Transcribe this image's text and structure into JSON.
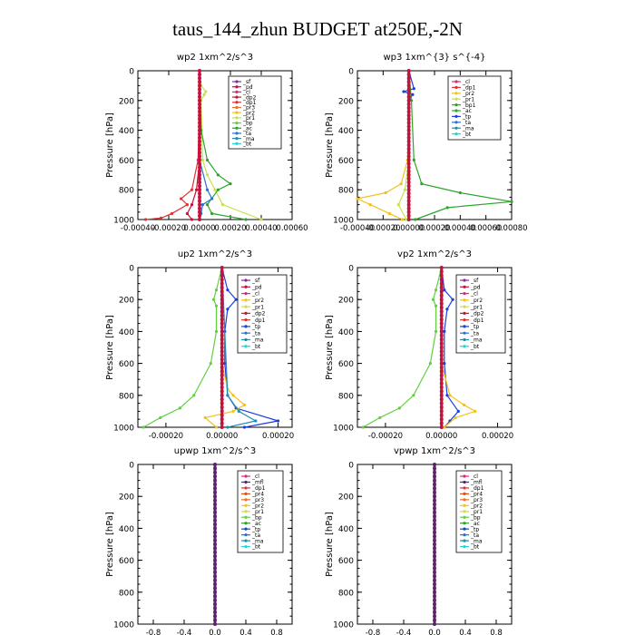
{
  "page_title": "taus_144_zhun  BUDGET at250E,-2N",
  "colors": {
    "sf": "#7e2fa0",
    "pd": "#c8103c",
    "cl": "#d42a7a",
    "dp2": "#c01830",
    "dp1": "#e03030",
    "pr4": "#e05010",
    "pr3": "#f07020",
    "pr2": "#f2c21a",
    "pr1": "#c8e050",
    "bp": "#60d040",
    "ac": "#2aa52a",
    "tp": "#1a3fe0",
    "ta": "#2f6fd0",
    "ma": "#1b8fb0",
    "bt": "#1ad8d8",
    "mfl": "#602070"
  },
  "chart_data": [
    {
      "type": "line",
      "title": "wp2   1xm^2/s^3",
      "ylabel": "Pressure [hPa]",
      "xlim": [
        -0.0004,
        0.0006
      ],
      "ylim": [
        1000,
        0
      ],
      "xticks": [
        -0.0004,
        -0.0002,
        0.0,
        0.0002,
        0.0004,
        0.0006
      ],
      "xtick_labels": [
        "-0.00040",
        "-0.00020",
        "0.00000",
        "0.00020",
        "0.00040",
        "0.00060"
      ],
      "yticks": [
        0,
        200,
        400,
        600,
        800,
        1000
      ],
      "ytick_labels": [
        "0",
        "200",
        "400",
        "600",
        "800",
        "1000"
      ],
      "legend_position": "top-right",
      "legend": [
        "_sf",
        "_pd",
        "_cl",
        "_dp2",
        "_dp1",
        "_pr3",
        "_pr2",
        "_pr1",
        "_bp",
        "_ac",
        "_ta",
        "_ma",
        "_bt"
      ],
      "series": [
        {
          "name": "_sf",
          "color_key": "sf",
          "p": [
            0,
            200,
            400,
            600,
            800,
            1000
          ],
          "x": [
            0,
            0,
            0,
            0,
            0,
            0
          ]
        },
        {
          "name": "_pd",
          "color_key": "pd",
          "p": [
            0,
            200,
            400,
            600,
            800,
            900,
            960,
            1000
          ],
          "x": [
            0,
            0,
            0,
            0,
            -2e-05,
            -5e-05,
            -8e-05,
            -5e-05
          ]
        },
        {
          "name": "_pr1",
          "color_key": "pr1",
          "p": [
            0,
            100,
            140,
            160,
            200,
            600,
            700,
            800,
            900,
            1000
          ],
          "x": [
            0,
            1e-05,
            4e-05,
            3e-05,
            1e-05,
            2e-05,
            5e-05,
            0.0001,
            0.00015,
            0.0004
          ]
        },
        {
          "name": "_dp1",
          "color_key": "dp1",
          "p": [
            0,
            200,
            600,
            800,
            860,
            900,
            960,
            990,
            1000
          ],
          "x": [
            0,
            0,
            -1e-05,
            -5e-05,
            -0.00012,
            -8e-05,
            -0.00018,
            -0.00025,
            -0.00035
          ]
        },
        {
          "name": "_ac",
          "color_key": "ac",
          "p": [
            0,
            400,
            600,
            700,
            760,
            800,
            900,
            960,
            1000
          ],
          "x": [
            0,
            1e-05,
            5e-05,
            0.00012,
            0.0002,
            0.00012,
            5e-05,
            8e-05,
            0.0003
          ]
        },
        {
          "name": "_ta",
          "color_key": "ta",
          "p": [
            0,
            600,
            800,
            860,
            900,
            960,
            1000
          ],
          "x": [
            0,
            0,
            5e-05,
            8e-05,
            2e-05,
            1e-05,
            0
          ]
        },
        {
          "name": "_cl",
          "color_key": "cl",
          "p": [
            0,
            200,
            400,
            600,
            800,
            1000
          ],
          "x": [
            0,
            0,
            0,
            0,
            0,
            0
          ]
        }
      ]
    },
    {
      "type": "line",
      "title": "wp3   1xm^{3} s^{-4}",
      "ylabel": "Pressure [hPa]",
      "xlim": [
        -0.0004,
        0.0008
      ],
      "ylim": [
        1000,
        0
      ],
      "xticks": [
        -0.0004,
        -0.0002,
        0.0,
        0.0002,
        0.0004,
        0.0006,
        0.0008
      ],
      "xtick_labels": [
        "-0.00040",
        "-0.00020",
        "0.00000",
        "0.00020",
        "0.00040",
        "0.00060",
        "0.00080"
      ],
      "yticks": [
        0,
        200,
        400,
        600,
        800,
        1000
      ],
      "ytick_labels": [
        "0",
        "200",
        "400",
        "600",
        "800",
        "1000"
      ],
      "legend_position": "top-right",
      "legend": [
        "_cl",
        "_dp1",
        "_pr2",
        "_pr1",
        "_bp1",
        "_ac",
        "_tp",
        "_ta",
        "_ma",
        "_bt"
      ],
      "series": [
        {
          "name": "_cl",
          "color_key": "cl",
          "p": [
            0,
            200,
            400,
            600,
            800,
            1000
          ],
          "x": [
            0,
            0,
            0,
            0,
            0,
            0
          ]
        },
        {
          "name": "_tp",
          "color_key": "tp",
          "p": [
            0,
            120,
            140,
            160,
            200,
            400,
            800,
            1000
          ],
          "x": [
            0,
            4e-05,
            -4e-05,
            3e-05,
            0,
            0,
            0,
            0
          ]
        },
        {
          "name": "_ac",
          "color_key": "ac",
          "p": [
            0,
            200,
            600,
            760,
            820,
            880,
            920,
            1000
          ],
          "x": [
            0,
            2e-05,
            4e-05,
            0.0001,
            0.0004,
            0.0008,
            0.0003,
            5e-05
          ]
        },
        {
          "name": "_pr2",
          "color_key": "pr2",
          "p": [
            0,
            200,
            600,
            760,
            820,
            860,
            900,
            960,
            1000
          ],
          "x": [
            0,
            0,
            -1e-05,
            -6e-05,
            -0.00018,
            -0.0004,
            -0.0003,
            -0.00015,
            -5e-05
          ]
        },
        {
          "name": "_pr1",
          "color_key": "pr1",
          "p": [
            0,
            600,
            800,
            900,
            1000
          ],
          "x": [
            0,
            0,
            -3e-05,
            -8e-05,
            -2e-05
          ]
        },
        {
          "name": "_dp1",
          "color_key": "dp1",
          "p": [
            0,
            200,
            400,
            600,
            800,
            1000
          ],
          "x": [
            0,
            0,
            0,
            0,
            0,
            0
          ]
        }
      ]
    },
    {
      "type": "line",
      "title": "up2    1xm^2/s^3",
      "ylabel": "Pressure [hPa]",
      "xlim": [
        -0.0003,
        0.00025
      ],
      "ylim": [
        1000,
        0
      ],
      "xticks": [
        -0.0002,
        0.0,
        0.0002
      ],
      "xtick_labels": [
        "-0.00020",
        "0.00000",
        "0.00020"
      ],
      "yticks": [
        0,
        200,
        400,
        600,
        800,
        1000
      ],
      "ytick_labels": [
        "0",
        "200",
        "400",
        "600",
        "800",
        "1000"
      ],
      "legend_position": "top-right",
      "legend": [
        "_sf",
        "_pd",
        "_cl",
        "_pr2",
        "_pr1",
        "_dp2",
        "_dp1",
        "_tp",
        "_ta",
        "_ma",
        "_bt"
      ],
      "series": [
        {
          "name": "_sf",
          "color_key": "sf",
          "p": [
            0,
            200,
            400,
            600,
            800,
            1000
          ],
          "x": [
            0,
            0,
            0,
            0,
            0,
            0
          ]
        },
        {
          "name": "_dp1",
          "color_key": "bp",
          "p": [
            0,
            140,
            200,
            240,
            400,
            600,
            800,
            880,
            940,
            1000
          ],
          "x": [
            0,
            -2e-05,
            -3e-05,
            -2e-05,
            -2e-05,
            -4e-05,
            -0.0001,
            -0.00015,
            -0.00022,
            -0.00028
          ]
        },
        {
          "name": "_tp",
          "color_key": "tp",
          "p": [
            0,
            140,
            200,
            260,
            400,
            600,
            800,
            880,
            960,
            1000
          ],
          "x": [
            0,
            2e-05,
            5e-05,
            2e-05,
            1e-05,
            1e-05,
            2e-05,
            5e-05,
            0.0002,
            8e-05
          ]
        },
        {
          "name": "_pr2",
          "color_key": "pr2",
          "p": [
            0,
            600,
            760,
            800,
            860,
            900,
            940,
            1000
          ],
          "x": [
            0,
            0,
            2e-05,
            4e-05,
            8e-05,
            4e-05,
            -6e-05,
            -2e-05
          ]
        },
        {
          "name": "_ta",
          "color_key": "ma",
          "p": [
            0,
            800,
            900,
            960,
            1000
          ],
          "x": [
            0,
            2e-05,
            6e-05,
            0.00012,
            2e-05
          ]
        },
        {
          "name": "_pd",
          "color_key": "pd",
          "p": [
            0,
            200,
            400,
            600,
            800,
            1000
          ],
          "x": [
            0,
            0,
            0,
            0,
            0,
            0
          ]
        }
      ]
    },
    {
      "type": "line",
      "title": "vp2    1xm^2/s^3",
      "ylabel": "Pressure [hPa]",
      "xlim": [
        -0.0003,
        0.00025
      ],
      "ylim": [
        1000,
        0
      ],
      "xticks": [
        -0.0002,
        0.0,
        0.0002
      ],
      "xtick_labels": [
        "-0.00020",
        "0.00000",
        "0.00020"
      ],
      "yticks": [
        0,
        200,
        400,
        600,
        800,
        1000
      ],
      "ytick_labels": [
        "0",
        "200",
        "400",
        "600",
        "800",
        "1000"
      ],
      "legend_position": "top-right",
      "legend": [
        "_sf",
        "_pd",
        "_cl",
        "_pr2",
        "_pr1",
        "_dp2",
        "_dp1",
        "_tp",
        "_ta",
        "_ma",
        "_bt"
      ],
      "series": [
        {
          "name": "_sf",
          "color_key": "sf",
          "p": [
            0,
            200,
            400,
            600,
            800,
            1000
          ],
          "x": [
            0,
            0,
            0,
            0,
            0,
            0
          ]
        },
        {
          "name": "_dp1",
          "color_key": "bp",
          "p": [
            0,
            140,
            200,
            240,
            400,
            600,
            800,
            880,
            940,
            1000
          ],
          "x": [
            0,
            -2e-05,
            -3e-05,
            -2e-05,
            -2e-05,
            -4e-05,
            -0.0001,
            -0.00015,
            -0.00022,
            -0.00028
          ]
        },
        {
          "name": "_tp",
          "color_key": "tp",
          "p": [
            0,
            140,
            200,
            260,
            400,
            600,
            800,
            900,
            960,
            1000
          ],
          "x": [
            0,
            1e-05,
            4e-05,
            2e-05,
            1e-05,
            1e-05,
            2e-05,
            6e-05,
            3e-05,
            1e-05
          ]
        },
        {
          "name": "_pr2",
          "color_key": "pr2",
          "p": [
            0,
            600,
            800,
            860,
            900,
            940,
            1000
          ],
          "x": [
            0,
            0,
            3e-05,
            8e-05,
            0.00012,
            5e-05,
            1e-05
          ]
        },
        {
          "name": "_pd",
          "color_key": "pd",
          "p": [
            0,
            200,
            400,
            600,
            800,
            1000
          ],
          "x": [
            0,
            0,
            0,
            0,
            0,
            0
          ]
        }
      ]
    },
    {
      "type": "line",
      "title": "upwp    1xm^2/s^3",
      "ylabel": "Pressure [hPa]",
      "xlim": [
        -1.0,
        1.0
      ],
      "ylim": [
        1000,
        0
      ],
      "xticks": [
        -0.8,
        -0.4,
        0.0,
        0.4,
        0.8
      ],
      "xtick_labels": [
        "-0.8",
        "-0.4",
        "0.0",
        "0.4",
        "0.8"
      ],
      "yticks": [
        0,
        200,
        400,
        600,
        800,
        1000
      ],
      "ytick_labels": [
        "0",
        "200",
        "400",
        "600",
        "800",
        "1000"
      ],
      "legend_position": "top-right",
      "legend": [
        "_cl",
        "_mfl",
        "_dp1",
        "_pr4",
        "_pr3",
        "_pr2",
        "_pr1",
        "_bp",
        "_ac",
        "_tp",
        "_ta",
        "_ma",
        "_bt"
      ],
      "series": [
        {
          "name": "_mfl",
          "color_key": "mfl",
          "p": [
            0,
            200,
            400,
            600,
            800,
            1000
          ],
          "x": [
            0,
            0,
            0,
            0,
            0,
            0
          ]
        },
        {
          "name": "_cl",
          "color_key": "sf",
          "p": [
            0,
            200,
            400,
            600,
            800,
            1000
          ],
          "x": [
            0,
            0,
            0,
            0,
            0,
            0
          ]
        }
      ]
    },
    {
      "type": "line",
      "title": "vpwp    1xm^2/s^3",
      "ylabel": "Pressure [hPa]",
      "xlim": [
        -1.0,
        1.0
      ],
      "ylim": [
        1000,
        0
      ],
      "xticks": [
        -0.8,
        -0.4,
        0.0,
        0.4,
        0.8
      ],
      "xtick_labels": [
        "-0.8",
        "-0.4",
        "0.0",
        "0.4",
        "0.8"
      ],
      "yticks": [
        0,
        200,
        400,
        600,
        800,
        1000
      ],
      "ytick_labels": [
        "0",
        "200",
        "400",
        "600",
        "800",
        "1000"
      ],
      "legend_position": "top-right",
      "legend": [
        "_cl",
        "_mfl",
        "_dp1",
        "_pr4",
        "_pr3",
        "_pr2",
        "_pr1",
        "_bp",
        "_ac",
        "_tp",
        "_ta",
        "_ma",
        "_bt"
      ],
      "series": [
        {
          "name": "_mfl",
          "color_key": "mfl",
          "p": [
            0,
            200,
            400,
            600,
            800,
            1000
          ],
          "x": [
            0,
            0,
            0,
            0,
            0,
            0
          ]
        },
        {
          "name": "_cl",
          "color_key": "sf",
          "p": [
            0,
            200,
            400,
            600,
            800,
            1000
          ],
          "x": [
            0,
            0,
            0,
            0,
            0,
            0
          ]
        }
      ]
    }
  ]
}
